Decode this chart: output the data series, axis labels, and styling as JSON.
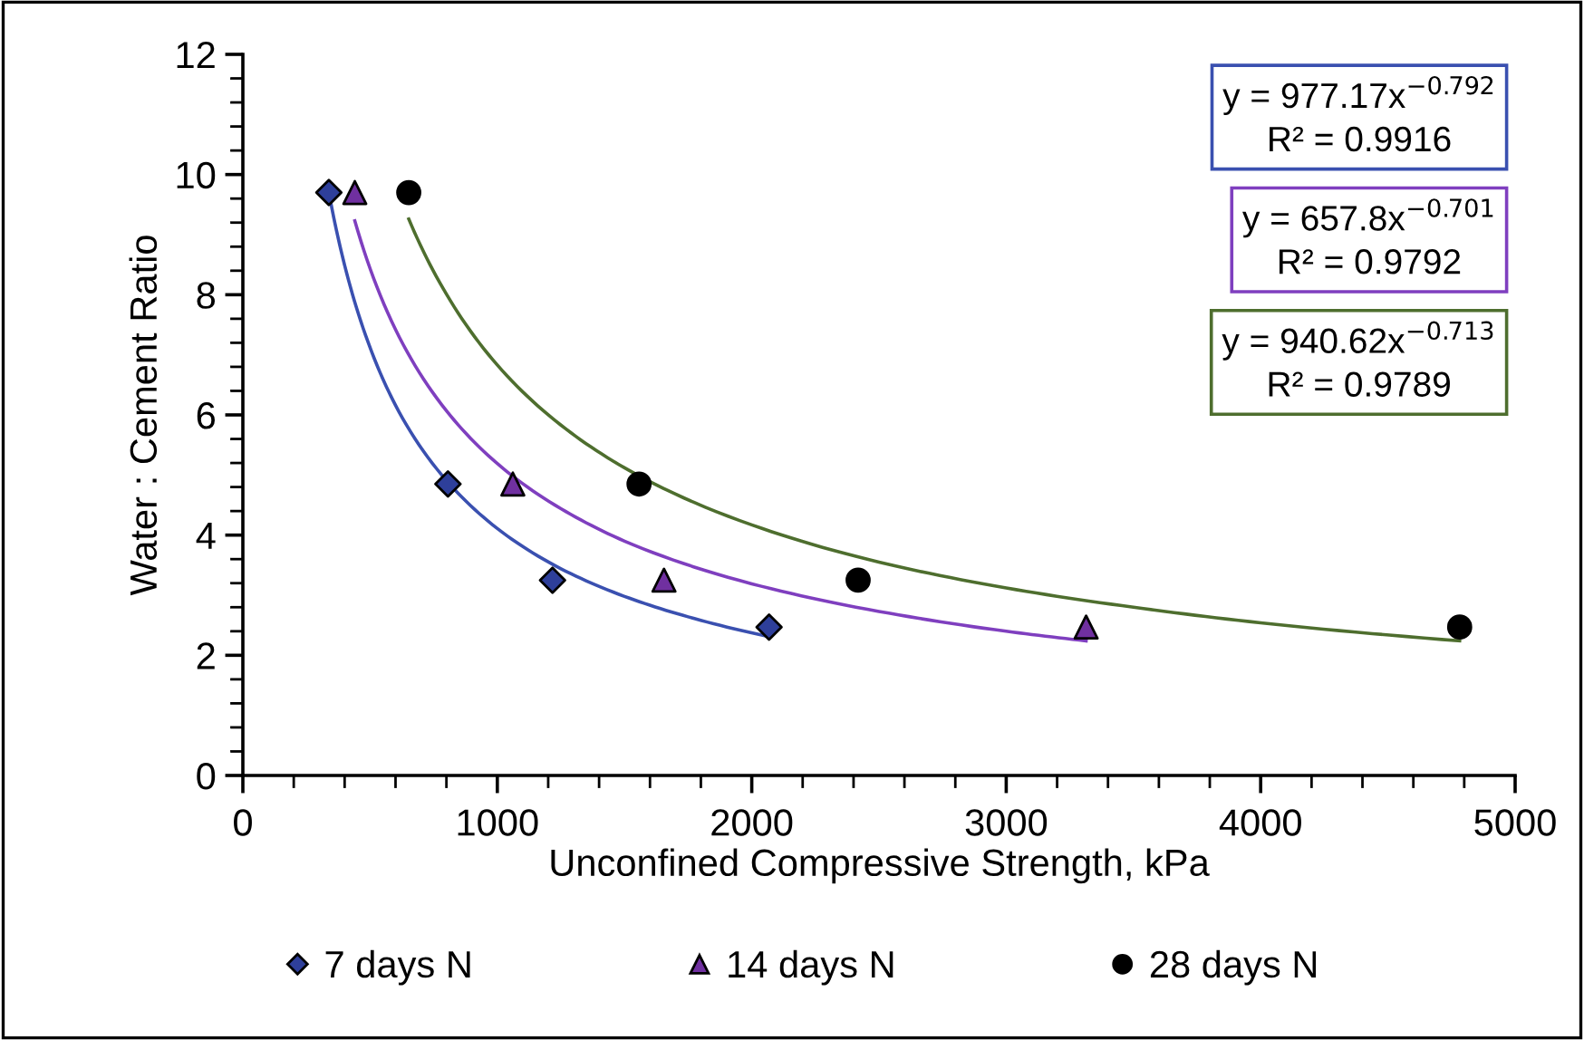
{
  "chart_data": {
    "type": "scatter",
    "xlabel": "Unconfined Compressive Strength, kPa",
    "ylabel": "Water : Cement Ratio",
    "xlim": [
      0,
      5000
    ],
    "ylim": [
      0,
      12
    ],
    "xticks": [
      0,
      {
        "value": 200,
        "label": null
      },
      {
        "value": 400,
        "label": null
      },
      {
        "value": 600,
        "label": null
      },
      {
        "value": 800,
        "label": null
      },
      1000,
      {
        "value": 1200,
        "label": null
      },
      {
        "value": 1400,
        "label": null
      },
      {
        "value": 1600,
        "label": null
      },
      {
        "value": 1800,
        "label": null
      },
      2000,
      {
        "value": 2200,
        "label": null
      },
      {
        "value": 2400,
        "label": null
      },
      {
        "value": 2600,
        "label": null
      },
      {
        "value": 2800,
        "label": null
      },
      3000,
      {
        "value": 3200,
        "label": null
      },
      {
        "value": 3400,
        "label": null
      },
      {
        "value": 3600,
        "label": null
      },
      {
        "value": 3800,
        "label": null
      },
      4000,
      {
        "value": 4200,
        "label": null
      },
      {
        "value": 4400,
        "label": null
      },
      {
        "value": 4600,
        "label": null
      },
      {
        "value": 4800,
        "label": null
      },
      5000
    ],
    "yticks": [
      0,
      {
        "value": 0.4,
        "label": null
      },
      {
        "value": 0.8,
        "label": null
      },
      {
        "value": 1.2,
        "label": null
      },
      {
        "value": 1.6,
        "label": null
      },
      2,
      {
        "value": 2.4,
        "label": null
      },
      {
        "value": 2.8,
        "label": null
      },
      {
        "value": 3.2,
        "label": null
      },
      {
        "value": 3.6,
        "label": null
      },
      4,
      {
        "value": 4.4,
        "label": null
      },
      {
        "value": 4.8,
        "label": null
      },
      {
        "value": 5.2,
        "label": null
      },
      {
        "value": 5.6,
        "label": null
      },
      6,
      {
        "value": 6.4,
        "label": null
      },
      {
        "value": 6.8,
        "label": null
      },
      {
        "value": 7.2,
        "label": null
      },
      {
        "value": 7.6,
        "label": null
      },
      8,
      {
        "value": 8.4,
        "label": null
      },
      {
        "value": 8.8,
        "label": null
      },
      {
        "value": 9.2,
        "label": null
      },
      {
        "value": 9.6,
        "label": null
      },
      10,
      {
        "value": 10.4,
        "label": null
      },
      {
        "value": 10.8,
        "label": null
      },
      {
        "value": 11.2,
        "label": null
      },
      {
        "value": 11.6,
        "label": null
      },
      12
    ],
    "grid": false,
    "legend": "bottom",
    "series": [
      {
        "type": "line",
        "color": "#3a50b0",
        "x": [
          338,
          400,
          500,
          600,
          800,
          1000,
          1250,
          1500,
          1750,
          2068
        ],
        "values": [
          9.7,
          8.49,
          7.12,
          6.16,
          4.91,
          4.11,
          3.44,
          2.98,
          2.64,
          2.31
        ]
      },
      {
        "type": "line",
        "color": "#7f3fbf",
        "x": [
          440,
          600,
          800,
          1000,
          1250,
          1500,
          2000,
          2500,
          3000,
          3314
        ],
        "values": [
          9.23,
          7.42,
          6.07,
          5.19,
          4.44,
          3.9,
          3.19,
          2.73,
          2.4,
          2.24
        ]
      },
      {
        "type": "line",
        "color": "#4e6e2e",
        "x": [
          652,
          800,
          1000,
          1250,
          1500,
          2000,
          2500,
          3000,
          3500,
          4000,
          4782
        ],
        "values": [
          9.26,
          8.01,
          6.83,
          5.83,
          5.12,
          4.17,
          3.55,
          3.12,
          2.8,
          2.54,
          2.24
        ]
      },
      {
        "name": "7 days N",
        "marker": "diamond",
        "color": "#2e3f9a",
        "x": [
          338,
          806,
          1217,
          2068
        ],
        "values": [
          9.7,
          4.85,
          3.25,
          2.47
        ]
      },
      {
        "name": "14 days N",
        "marker": "triangle",
        "color": "#7030a0",
        "x": [
          440,
          1061,
          1655,
          3314
        ],
        "values": [
          9.7,
          4.85,
          3.25,
          2.47
        ]
      },
      {
        "name": "28 days N",
        "marker": "circle",
        "color": "#000000",
        "x": [
          652,
          1557,
          2418,
          4782
        ],
        "values": [
          9.7,
          4.85,
          3.25,
          2.47
        ]
      }
    ],
    "annotations": [
      "y = 977.17x$^{−0.792}$\nR² = 0.9916",
      "y = 657.8x$^{−0.701}$\nR² = 0.9792",
      "y = 940.62x$^{−0.713}$\nR² = 0.9789"
    ]
  }
}
